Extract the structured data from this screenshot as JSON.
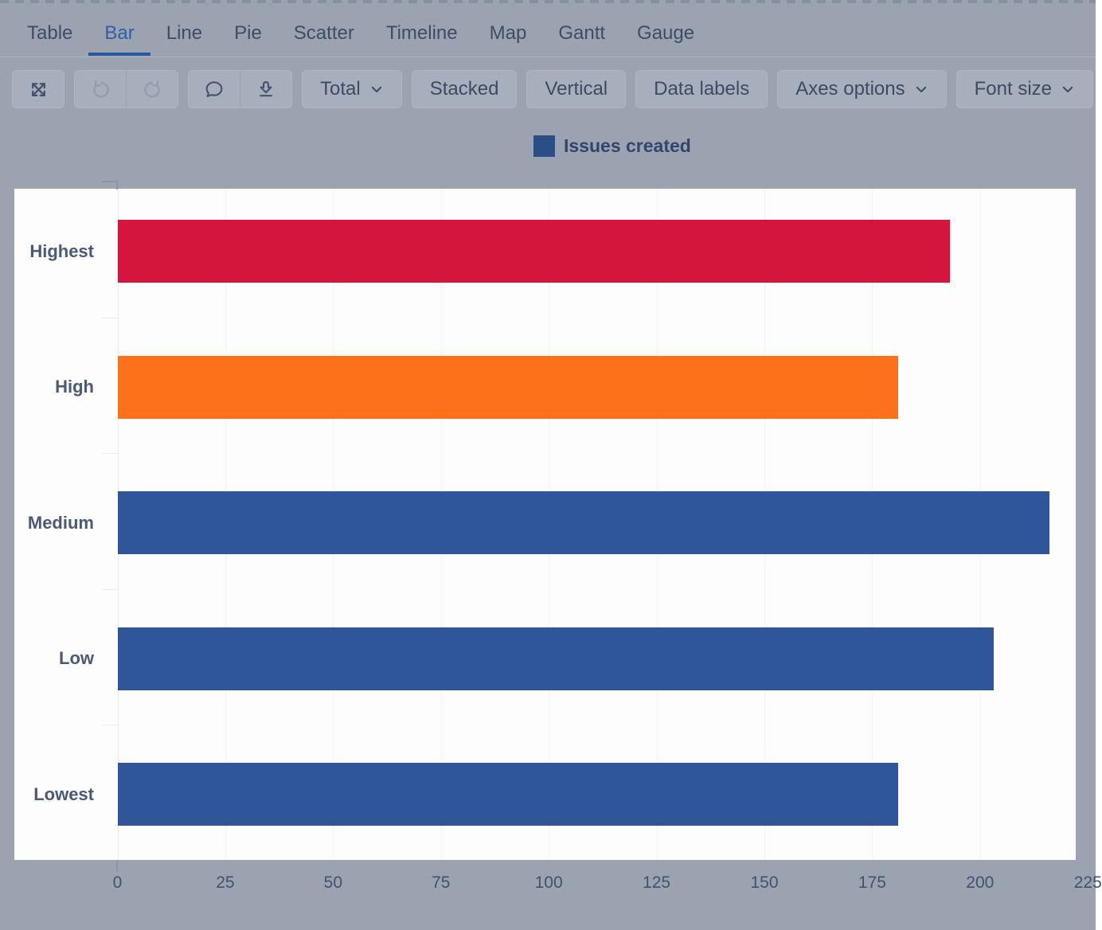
{
  "tabs": {
    "items": [
      "Table",
      "Bar",
      "Line",
      "Pie",
      "Scatter",
      "Timeline",
      "Map",
      "Gantt",
      "Gauge"
    ],
    "active": "Bar",
    "active_index": 1
  },
  "toolbar": {
    "icon_buttons": [
      {
        "icon": "expand-icon",
        "enabled": true
      },
      {
        "icon": "undo-icon",
        "enabled": false
      },
      {
        "icon": "redo-icon",
        "enabled": false
      },
      {
        "icon": "comment-icon",
        "enabled": true
      },
      {
        "icon": "download-icon",
        "enabled": true
      }
    ],
    "buttons": [
      {
        "label": "Total",
        "chevron": true
      },
      {
        "label": "Stacked",
        "chevron": false
      },
      {
        "label": "Vertical",
        "chevron": false
      },
      {
        "label": "Data labels",
        "chevron": false
      },
      {
        "label": "Axes options",
        "chevron": true
      },
      {
        "label": "Font size",
        "chevron": true
      }
    ]
  },
  "legend": {
    "label": "Issues created",
    "swatch_color": "#2a4e85"
  },
  "chart_data": {
    "type": "bar",
    "orientation": "horizontal",
    "title": "",
    "xlabel": "",
    "ylabel": "",
    "categories": [
      "Highest",
      "High",
      "Medium",
      "Low",
      "Lowest"
    ],
    "series": [
      {
        "name": "Issues created",
        "values": [
          193,
          181,
          216,
          203,
          181
        ]
      }
    ],
    "bar_colors": [
      "#d4163c",
      "#fc7119",
      "#2e5699",
      "#2e5699",
      "#2e5699"
    ],
    "x_ticks": [
      0,
      25,
      50,
      75,
      100,
      125,
      150,
      175,
      200,
      225
    ],
    "xlim": [
      0,
      225
    ],
    "grid": true,
    "legend_position": "top"
  }
}
